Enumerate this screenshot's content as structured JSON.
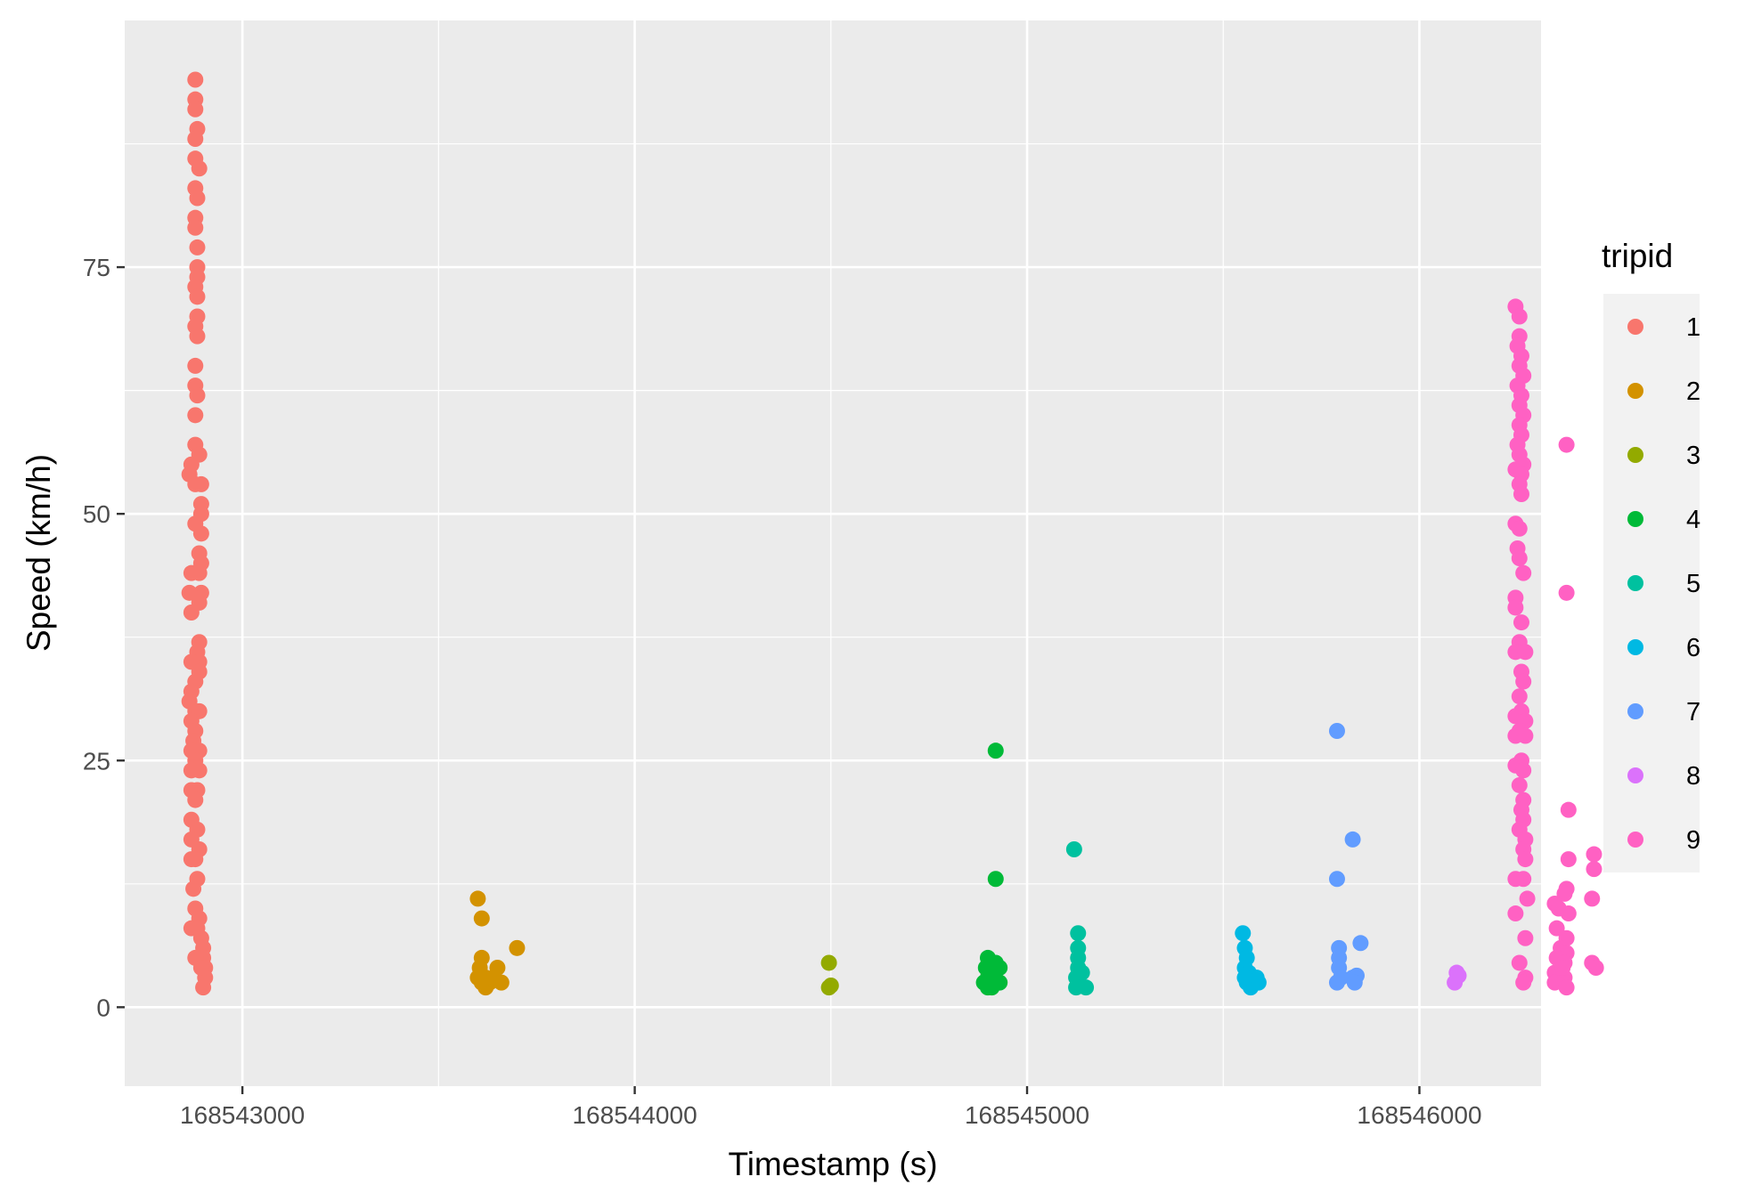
{
  "chart_data": {
    "type": "scatter",
    "title": "",
    "xlabel": "Timestamp (s)",
    "ylabel": "Speed (km/h)",
    "xlim": [
      168542700,
      168546310
    ],
    "ylim": [
      -8,
      100
    ],
    "x_ticks": [
      168543000,
      168544000,
      168545000,
      168546000
    ],
    "x_tick_labels": [
      "168543000",
      "168544000",
      "168545000",
      "168546000"
    ],
    "y_ticks": [
      0,
      25,
      50,
      75
    ],
    "y_tick_labels": [
      "0",
      "25",
      "50",
      "75"
    ],
    "grid": true,
    "legend": {
      "title": "tripid",
      "position": "right"
    },
    "series": [
      {
        "name": "1",
        "color": "#F8766D",
        "points": [
          [
            168542880,
            94
          ],
          [
            168542880,
            92
          ],
          [
            168542880,
            91
          ],
          [
            168542885,
            89
          ],
          [
            168542880,
            88
          ],
          [
            168542880,
            86
          ],
          [
            168542890,
            85
          ],
          [
            168542880,
            83
          ],
          [
            168542885,
            82
          ],
          [
            168542880,
            80
          ],
          [
            168542880,
            79
          ],
          [
            168542885,
            77
          ],
          [
            168542885,
            75
          ],
          [
            168542885,
            74
          ],
          [
            168542880,
            73
          ],
          [
            168542885,
            72
          ],
          [
            168542885,
            70
          ],
          [
            168542880,
            69
          ],
          [
            168542885,
            68
          ],
          [
            168542880,
            65
          ],
          [
            168542880,
            63
          ],
          [
            168542885,
            62
          ],
          [
            168542880,
            60
          ],
          [
            168542880,
            57
          ],
          [
            168542890,
            56
          ],
          [
            168542870,
            55
          ],
          [
            168542865,
            54
          ],
          [
            168542895,
            53
          ],
          [
            168542880,
            53
          ],
          [
            168542895,
            51
          ],
          [
            168542895,
            50
          ],
          [
            168542880,
            49
          ],
          [
            168542895,
            48
          ],
          [
            168542890,
            46
          ],
          [
            168542895,
            45
          ],
          [
            168542890,
            44
          ],
          [
            168542870,
            44
          ],
          [
            168542895,
            42
          ],
          [
            168542890,
            41
          ],
          [
            168542865,
            42
          ],
          [
            168542870,
            40
          ],
          [
            168542890,
            37
          ],
          [
            168542885,
            36
          ],
          [
            168542890,
            35
          ],
          [
            168542870,
            35
          ],
          [
            168542890,
            34
          ],
          [
            168542880,
            33
          ],
          [
            168542870,
            32
          ],
          [
            168542865,
            31
          ],
          [
            168542880,
            30
          ],
          [
            168542890,
            30
          ],
          [
            168542870,
            29
          ],
          [
            168542880,
            28
          ],
          [
            168542875,
            27
          ],
          [
            168542890,
            26
          ],
          [
            168542870,
            26
          ],
          [
            168542880,
            25
          ],
          [
            168542890,
            24
          ],
          [
            168542885,
            22
          ],
          [
            168542870,
            22
          ],
          [
            168542880,
            21
          ],
          [
            168542870,
            19
          ],
          [
            168542885,
            18
          ],
          [
            168542870,
            17
          ],
          [
            168542890,
            16
          ],
          [
            168542880,
            15
          ],
          [
            168542870,
            15
          ],
          [
            168542885,
            13
          ],
          [
            168542875,
            12
          ],
          [
            168542880,
            10
          ],
          [
            168542890,
            9
          ],
          [
            168542870,
            8
          ],
          [
            168542895,
            7
          ],
          [
            168542900,
            6
          ],
          [
            168542900,
            5
          ],
          [
            168542880,
            5
          ],
          [
            168542905,
            4
          ],
          [
            168542905,
            3
          ],
          [
            168542900,
            2
          ],
          [
            168542895,
            4
          ],
          [
            168542885,
            8
          ],
          [
            168542870,
            24
          ]
        ]
      },
      {
        "name": "2",
        "color": "#D39200",
        "points": [
          [
            168543600,
            11
          ],
          [
            168543610,
            9
          ],
          [
            168543610,
            5
          ],
          [
            168543605,
            4
          ],
          [
            168543600,
            3
          ],
          [
            168543610,
            2.5
          ],
          [
            168543620,
            2
          ],
          [
            168543630,
            2.5
          ],
          [
            168543640,
            3
          ],
          [
            168543650,
            4
          ],
          [
            168543660,
            2.5
          ],
          [
            168543700,
            6
          ],
          [
            168543620,
            3
          ]
        ]
      },
      {
        "name": "3",
        "color": "#93AA00",
        "points": [
          [
            168544495,
            4.5
          ],
          [
            168544495,
            2
          ],
          [
            168544500,
            2.2
          ]
        ]
      },
      {
        "name": "4",
        "color": "#00BA38",
        "points": [
          [
            168544920,
            26
          ],
          [
            168544920,
            13
          ],
          [
            168544900,
            5
          ],
          [
            168544920,
            4.5
          ],
          [
            168544895,
            4
          ],
          [
            168544930,
            4
          ],
          [
            168544900,
            3
          ],
          [
            168544910,
            3.5
          ],
          [
            168544920,
            2.5
          ],
          [
            168544900,
            2
          ],
          [
            168544930,
            2.5
          ],
          [
            168544910,
            2
          ],
          [
            168544890,
            2.5
          ]
        ]
      },
      {
        "name": "5",
        "color": "#00C19F",
        "points": [
          [
            168545120,
            16
          ],
          [
            168545130,
            7.5
          ],
          [
            168545130,
            6
          ],
          [
            168545130,
            5
          ],
          [
            168545140,
            3.5
          ],
          [
            168545125,
            3
          ],
          [
            168545125,
            2
          ],
          [
            168545150,
            2
          ],
          [
            168545130,
            4
          ]
        ]
      },
      {
        "name": "6",
        "color": "#00B9E3",
        "points": [
          [
            168545550,
            7.5
          ],
          [
            168545555,
            6
          ],
          [
            168545560,
            5
          ],
          [
            168545555,
            4
          ],
          [
            168545565,
            3.5
          ],
          [
            168545580,
            3
          ],
          [
            168545560,
            2.5
          ],
          [
            168545590,
            2.5
          ],
          [
            168545570,
            2
          ],
          [
            168545585,
            3
          ],
          [
            168545555,
            3
          ]
        ]
      },
      {
        "name": "7",
        "color": "#619CFF",
        "points": [
          [
            168545790,
            28
          ],
          [
            168545830,
            17
          ],
          [
            168545790,
            13
          ],
          [
            168545850,
            6.5
          ],
          [
            168545795,
            6
          ],
          [
            168545795,
            5
          ],
          [
            168545795,
            4
          ],
          [
            168545800,
            3
          ],
          [
            168545790,
            2.5
          ],
          [
            168545830,
            3
          ],
          [
            168545840,
            3.2
          ],
          [
            168545835,
            2.5
          ]
        ]
      },
      {
        "name": "8",
        "color": "#DB72FB",
        "points": [
          [
            168546095,
            3.5
          ],
          [
            168546100,
            3.2
          ],
          [
            168546090,
            2.5
          ]
        ]
      },
      {
        "name": "9",
        "color": "#FF61C3",
        "points": [
          [
            168546245,
            71
          ],
          [
            168546255,
            70
          ],
          [
            168546255,
            68
          ],
          [
            168546250,
            67
          ],
          [
            168546260,
            66
          ],
          [
            168546255,
            65
          ],
          [
            168546265,
            64
          ],
          [
            168546250,
            63
          ],
          [
            168546260,
            62
          ],
          [
            168546255,
            61
          ],
          [
            168546265,
            60
          ],
          [
            168546255,
            59
          ],
          [
            168546260,
            58
          ],
          [
            168546250,
            57
          ],
          [
            168546255,
            56
          ],
          [
            168546265,
            55
          ],
          [
            168546245,
            54.5
          ],
          [
            168546260,
            54
          ],
          [
            168546255,
            53
          ],
          [
            168546260,
            52
          ],
          [
            168546245,
            49
          ],
          [
            168546255,
            48.5
          ],
          [
            168546250,
            46.5
          ],
          [
            168546255,
            45.5
          ],
          [
            168546265,
            44
          ],
          [
            168546245,
            41.5
          ],
          [
            168546245,
            40.5
          ],
          [
            168546260,
            39
          ],
          [
            168546255,
            37
          ],
          [
            168546245,
            36
          ],
          [
            168546270,
            36
          ],
          [
            168546260,
            34
          ],
          [
            168546265,
            33
          ],
          [
            168546255,
            31.5
          ],
          [
            168546260,
            30
          ],
          [
            168546245,
            29.5
          ],
          [
            168546270,
            29
          ],
          [
            168546255,
            28
          ],
          [
            168546245,
            27.5
          ],
          [
            168546270,
            27.5
          ],
          [
            168546260,
            25
          ],
          [
            168546245,
            24.5
          ],
          [
            168546265,
            24
          ],
          [
            168546255,
            22.5
          ],
          [
            168546265,
            21
          ],
          [
            168546260,
            20
          ],
          [
            168546265,
            19
          ],
          [
            168546255,
            18
          ],
          [
            168546270,
            17
          ],
          [
            168546265,
            16
          ],
          [
            168546270,
            15
          ],
          [
            168546265,
            13
          ],
          [
            168546245,
            13
          ],
          [
            168546275,
            11
          ],
          [
            168546245,
            9.5
          ],
          [
            168546270,
            7
          ],
          [
            168546255,
            4.5
          ],
          [
            168546270,
            3
          ],
          [
            168546265,
            2.5
          ],
          [
            168546375,
            57
          ],
          [
            168546375,
            42
          ],
          [
            168546380,
            20
          ],
          [
            168546380,
            15
          ],
          [
            168546445,
            15.5
          ],
          [
            168546445,
            14
          ],
          [
            168546375,
            12
          ],
          [
            168546370,
            11.5
          ],
          [
            168546345,
            10.5
          ],
          [
            168546440,
            11
          ],
          [
            168546355,
            10
          ],
          [
            168546380,
            9.5
          ],
          [
            168546350,
            8
          ],
          [
            168546375,
            7
          ],
          [
            168546360,
            6
          ],
          [
            168546375,
            5.5
          ],
          [
            168546350,
            5
          ],
          [
            168546370,
            4.5
          ],
          [
            168546440,
            4.5
          ],
          [
            168546450,
            4
          ],
          [
            168546345,
            3.5
          ],
          [
            168546370,
            3
          ],
          [
            168546345,
            2.5
          ],
          [
            168546375,
            2
          ],
          [
            168546365,
            4
          ]
        ]
      }
    ]
  }
}
